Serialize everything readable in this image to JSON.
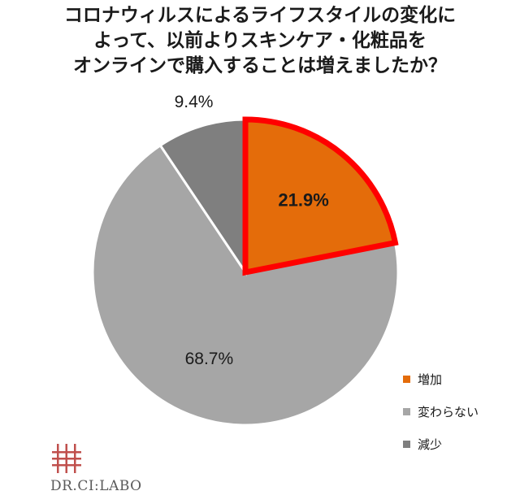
{
  "chart_data": {
    "type": "pie",
    "title_lines": [
      "コロナウィルスによるライフスタイルの変化に",
      "よって、以前よりスキンケア・化粧品を",
      "オンラインで購入することは増えましたか？"
    ],
    "slices": [
      {
        "name": "増加",
        "value": 21.9,
        "label": "21.9%",
        "color": "#e46c0a",
        "highlight": true,
        "highlight_color": "#ff0000"
      },
      {
        "name": "変わらない",
        "value": 68.7,
        "label": "68.7%",
        "color": "#a6a6a6"
      },
      {
        "name": "減少",
        "value": 9.4,
        "label": "9.4%",
        "color": "#7f7f7f"
      }
    ],
    "start": "12 o'clock",
    "direction": "clockwise",
    "legend_position": "right-bottom"
  },
  "logo": {
    "text": "DR.CI:LABO",
    "color": "#c0504d"
  }
}
